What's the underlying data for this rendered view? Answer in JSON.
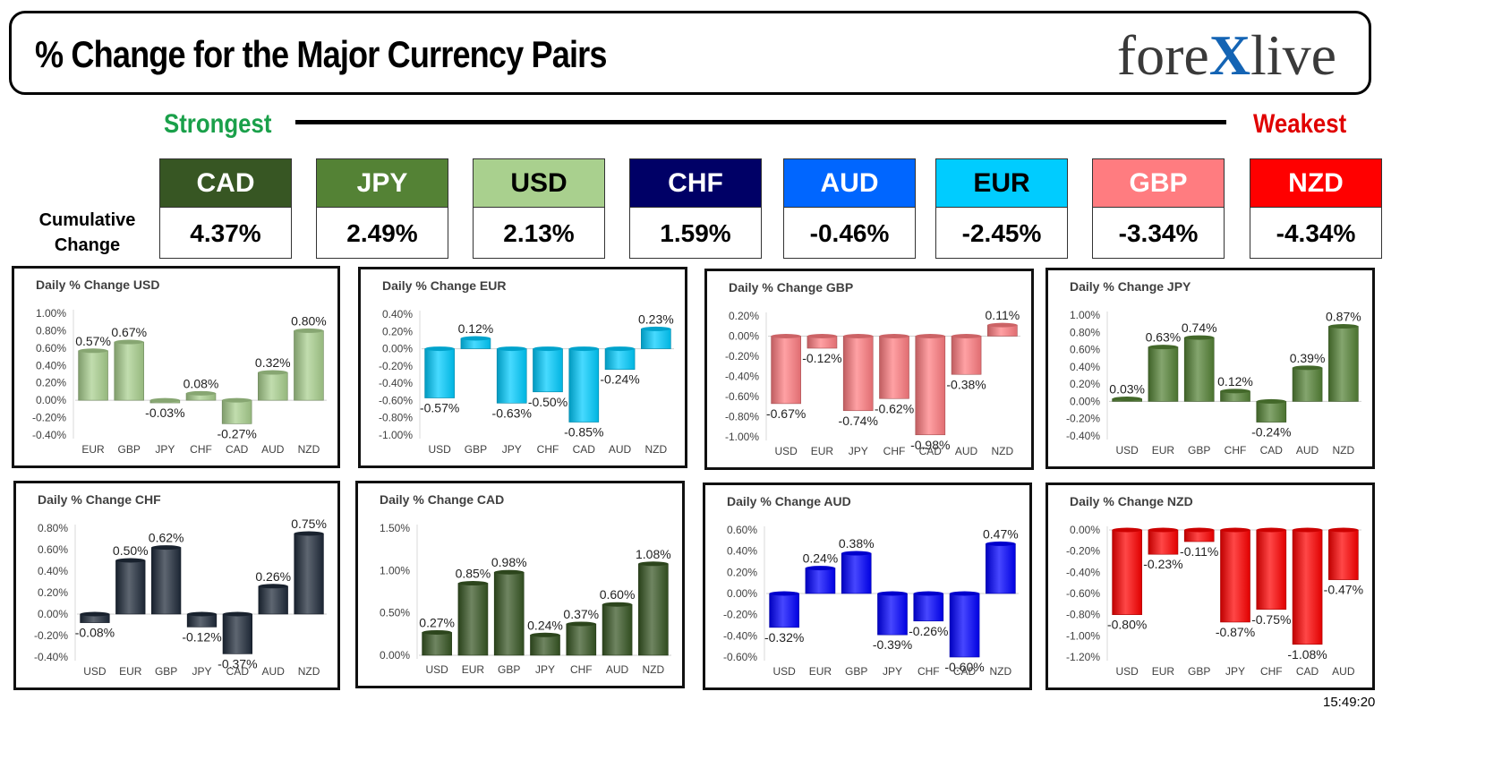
{
  "header": {
    "title": "% Change for the Major Currency Pairs",
    "logo_left": "fore",
    "logo_x": "X",
    "logo_right": "live"
  },
  "scale": {
    "strongest": "Strongest",
    "weakest": "Weakest"
  },
  "cumulative": {
    "label_line1": "Cumulative",
    "label_line2": "Change",
    "currencies": [
      {
        "name": "CAD",
        "value": "4.37%",
        "bg": "#375623",
        "fg": "#ffffff"
      },
      {
        "name": "JPY",
        "value": "2.49%",
        "bg": "#548235",
        "fg": "#ffffff"
      },
      {
        "name": "USD",
        "value": "2.13%",
        "bg": "#a9d08e",
        "fg": "#000000"
      },
      {
        "name": "CHF",
        "value": "1.59%",
        "bg": "#000066",
        "fg": "#ffffff"
      },
      {
        "name": "AUD",
        "value": "-0.46%",
        "bg": "#0066ff",
        "fg": "#ffffff"
      },
      {
        "name": "EUR",
        "value": "-2.45%",
        "bg": "#00ccff",
        "fg": "#000000"
      },
      {
        "name": "GBP",
        "value": "-3.34%",
        "bg": "#ff7c80",
        "fg": "#ffffff"
      },
      {
        "name": "NZD",
        "value": "-4.34%",
        "bg": "#ff0000",
        "fg": "#ffffff"
      }
    ]
  },
  "chart_data": [
    {
      "type": "bar",
      "title": "Daily % Change USD",
      "color": "#a9d08e",
      "categories": [
        "EUR",
        "GBP",
        "JPY",
        "CHF",
        "CAD",
        "AUD",
        "NZD"
      ],
      "values": [
        0.57,
        0.67,
        -0.03,
        0.08,
        -0.27,
        0.32,
        0.8
      ],
      "yticks": [
        "1.00%",
        "0.80%",
        "0.60%",
        "0.40%",
        "0.20%",
        "0.00%",
        "-0.20%",
        "-0.40%"
      ],
      "ylim": [
        -0.4,
        1.0
      ]
    },
    {
      "type": "bar",
      "title": "Daily % Change EUR",
      "color": "#00ccff",
      "categories": [
        "USD",
        "GBP",
        "JPY",
        "CHF",
        "CAD",
        "AUD",
        "NZD"
      ],
      "values": [
        -0.57,
        0.12,
        -0.63,
        -0.5,
        -0.85,
        -0.24,
        0.23
      ],
      "yticks": [
        "0.40%",
        "0.20%",
        "0.00%",
        "-0.20%",
        "-0.40%",
        "-0.60%",
        "-0.80%",
        "-1.00%"
      ],
      "ylim": [
        -1.0,
        0.4
      ]
    },
    {
      "type": "bar",
      "title": "Daily % Change GBP",
      "color": "#ff7c80",
      "categories": [
        "USD",
        "EUR",
        "JPY",
        "CHF",
        "CAD",
        "AUD",
        "NZD"
      ],
      "values": [
        -0.67,
        -0.12,
        -0.74,
        -0.62,
        -0.98,
        -0.38,
        0.11
      ],
      "yticks": [
        "0.20%",
        "0.00%",
        "-0.20%",
        "-0.40%",
        "-0.60%",
        "-0.80%",
        "-1.00%"
      ],
      "ylim": [
        -1.0,
        0.2
      ]
    },
    {
      "type": "bar",
      "title": "Daily % Change JPY",
      "color": "#548235",
      "categories": [
        "USD",
        "EUR",
        "GBP",
        "CHF",
        "CAD",
        "AUD",
        "NZD"
      ],
      "values": [
        0.03,
        0.63,
        0.74,
        0.12,
        -0.24,
        0.39,
        0.87
      ],
      "yticks": [
        "1.00%",
        "0.80%",
        "0.60%",
        "0.40%",
        "0.20%",
        "0.00%",
        "-0.20%",
        "-0.40%"
      ],
      "ylim": [
        -0.4,
        1.0
      ]
    },
    {
      "type": "bar",
      "title": "Daily % Change CHF",
      "color": "#1f2a3a",
      "categories": [
        "USD",
        "EUR",
        "GBP",
        "JPY",
        "CAD",
        "AUD",
        "NZD"
      ],
      "values": [
        -0.08,
        0.5,
        0.62,
        -0.12,
        -0.37,
        0.26,
        0.75
      ],
      "yticks": [
        "0.80%",
        "0.60%",
        "0.40%",
        "0.20%",
        "0.00%",
        "-0.20%",
        "-0.40%"
      ],
      "ylim": [
        -0.4,
        0.8
      ]
    },
    {
      "type": "bar",
      "title": "Daily % Change CAD",
      "color": "#375623",
      "categories": [
        "USD",
        "EUR",
        "GBP",
        "JPY",
        "CHF",
        "AUD",
        "NZD"
      ],
      "values": [
        0.27,
        0.85,
        0.98,
        0.24,
        0.37,
        0.6,
        1.08
      ],
      "yticks": [
        "1.50%",
        "1.00%",
        "0.50%",
        "0.00%"
      ],
      "ylim": [
        0.0,
        1.5
      ]
    },
    {
      "type": "bar",
      "title": "Daily % Change AUD",
      "color": "#0000ff",
      "categories": [
        "USD",
        "EUR",
        "GBP",
        "JPY",
        "CHF",
        "CAD",
        "NZD"
      ],
      "values": [
        -0.32,
        0.24,
        0.38,
        -0.39,
        -0.26,
        -0.6,
        0.47
      ],
      "yticks": [
        "0.60%",
        "0.40%",
        "0.20%",
        "0.00%",
        "-0.20%",
        "-0.40%",
        "-0.60%"
      ],
      "ylim": [
        -0.6,
        0.6
      ]
    },
    {
      "type": "bar",
      "title": "Daily % Change NZD",
      "color": "#ff0000",
      "categories": [
        "USD",
        "EUR",
        "GBP",
        "JPY",
        "CHF",
        "CAD",
        "AUD"
      ],
      "values": [
        -0.8,
        -0.23,
        -0.11,
        -0.87,
        -0.75,
        -1.08,
        -0.47
      ],
      "yticks": [
        "0.00%",
        "-0.20%",
        "-0.40%",
        "-0.60%",
        "-0.80%",
        "-1.00%",
        "-1.20%"
      ],
      "ylim": [
        -1.2,
        0.0
      ]
    }
  ],
  "timestamp": "15:49:20"
}
